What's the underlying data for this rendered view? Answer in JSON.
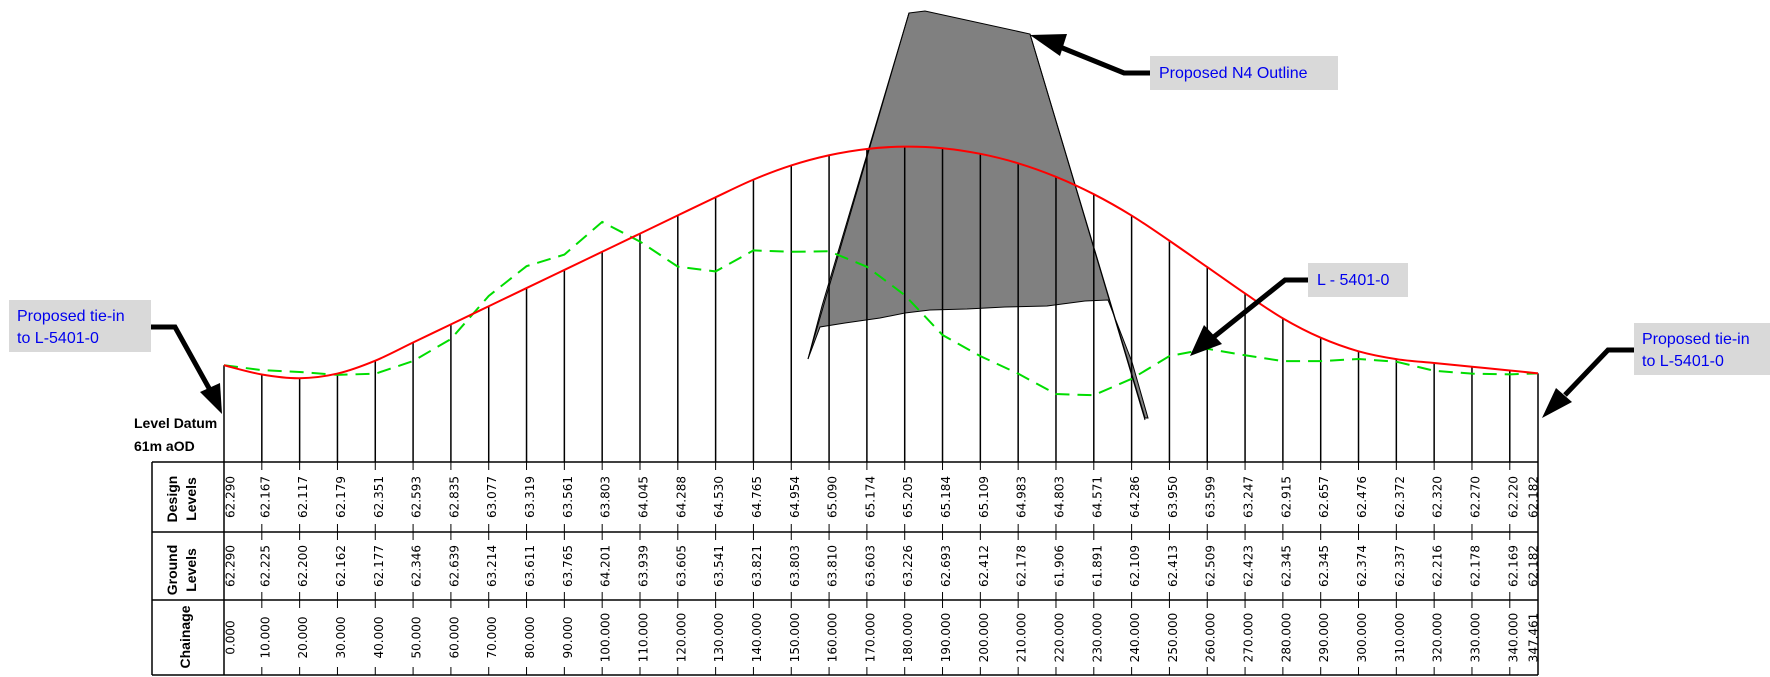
{
  "labels": {
    "outline": "Proposed N4 Outline",
    "road": "L - 5401-0",
    "tie_in_left": [
      "Proposed tie-in",
      "to L-5401-0"
    ],
    "tie_in_right": [
      "Proposed tie-in",
      "to L-5401-0"
    ],
    "datum": [
      "Level Datum",
      "61m aOD"
    ]
  },
  "table": {
    "row_headers": {
      "design": [
        "Design",
        "Levels"
      ],
      "ground": [
        "Ground",
        "Levels"
      ],
      "chainage": [
        "Chainage"
      ]
    },
    "chainage": [
      "0.000",
      "10.000",
      "20.000",
      "30.000",
      "40.000",
      "50.000",
      "60.000",
      "70.000",
      "80.000",
      "90.000",
      "100.000",
      "110.000",
      "120.000",
      "130.000",
      "140.000",
      "150.000",
      "160.000",
      "170.000",
      "180.000",
      "190.000",
      "200.000",
      "210.000",
      "220.000",
      "230.000",
      "240.000",
      "250.000",
      "260.000",
      "270.000",
      "280.000",
      "290.000",
      "300.000",
      "310.000",
      "320.000",
      "330.000",
      "340.000",
      "347.461"
    ],
    "design": [
      "62.290",
      "62.167",
      "62.117",
      "62.179",
      "62.351",
      "62.593",
      "62.835",
      "63.077",
      "63.319",
      "63.561",
      "63.803",
      "64.045",
      "64.288",
      "64.530",
      "64.765",
      "64.954",
      "65.090",
      "65.174",
      "65.205",
      "65.184",
      "65.109",
      "64.983",
      "64.803",
      "64.571",
      "64.286",
      "63.950",
      "63.599",
      "63.247",
      "62.915",
      "62.657",
      "62.476",
      "62.372",
      "62.320",
      "62.270",
      "62.220",
      "62.182"
    ],
    "ground": [
      "62.290",
      "62.225",
      "62.200",
      "62.162",
      "62.177",
      "62.346",
      "62.639",
      "63.214",
      "63.611",
      "63.765",
      "64.201",
      "63.939",
      "63.605",
      "63.541",
      "63.821",
      "63.803",
      "63.810",
      "63.603",
      "63.226",
      "62.693",
      "62.412",
      "62.178",
      "61.906",
      "61.891",
      "62.109",
      "62.413",
      "62.509",
      "62.423",
      "62.345",
      "62.345",
      "62.374",
      "62.337",
      "62.216",
      "62.178",
      "62.169",
      "62.182"
    ]
  },
  "colors": {
    "design_line": "#ff0000",
    "ground_line": "#00dd00",
    "outline_fill": "#808080",
    "label_box": "#d9d9d9",
    "label_text": "#0000ee"
  }
}
